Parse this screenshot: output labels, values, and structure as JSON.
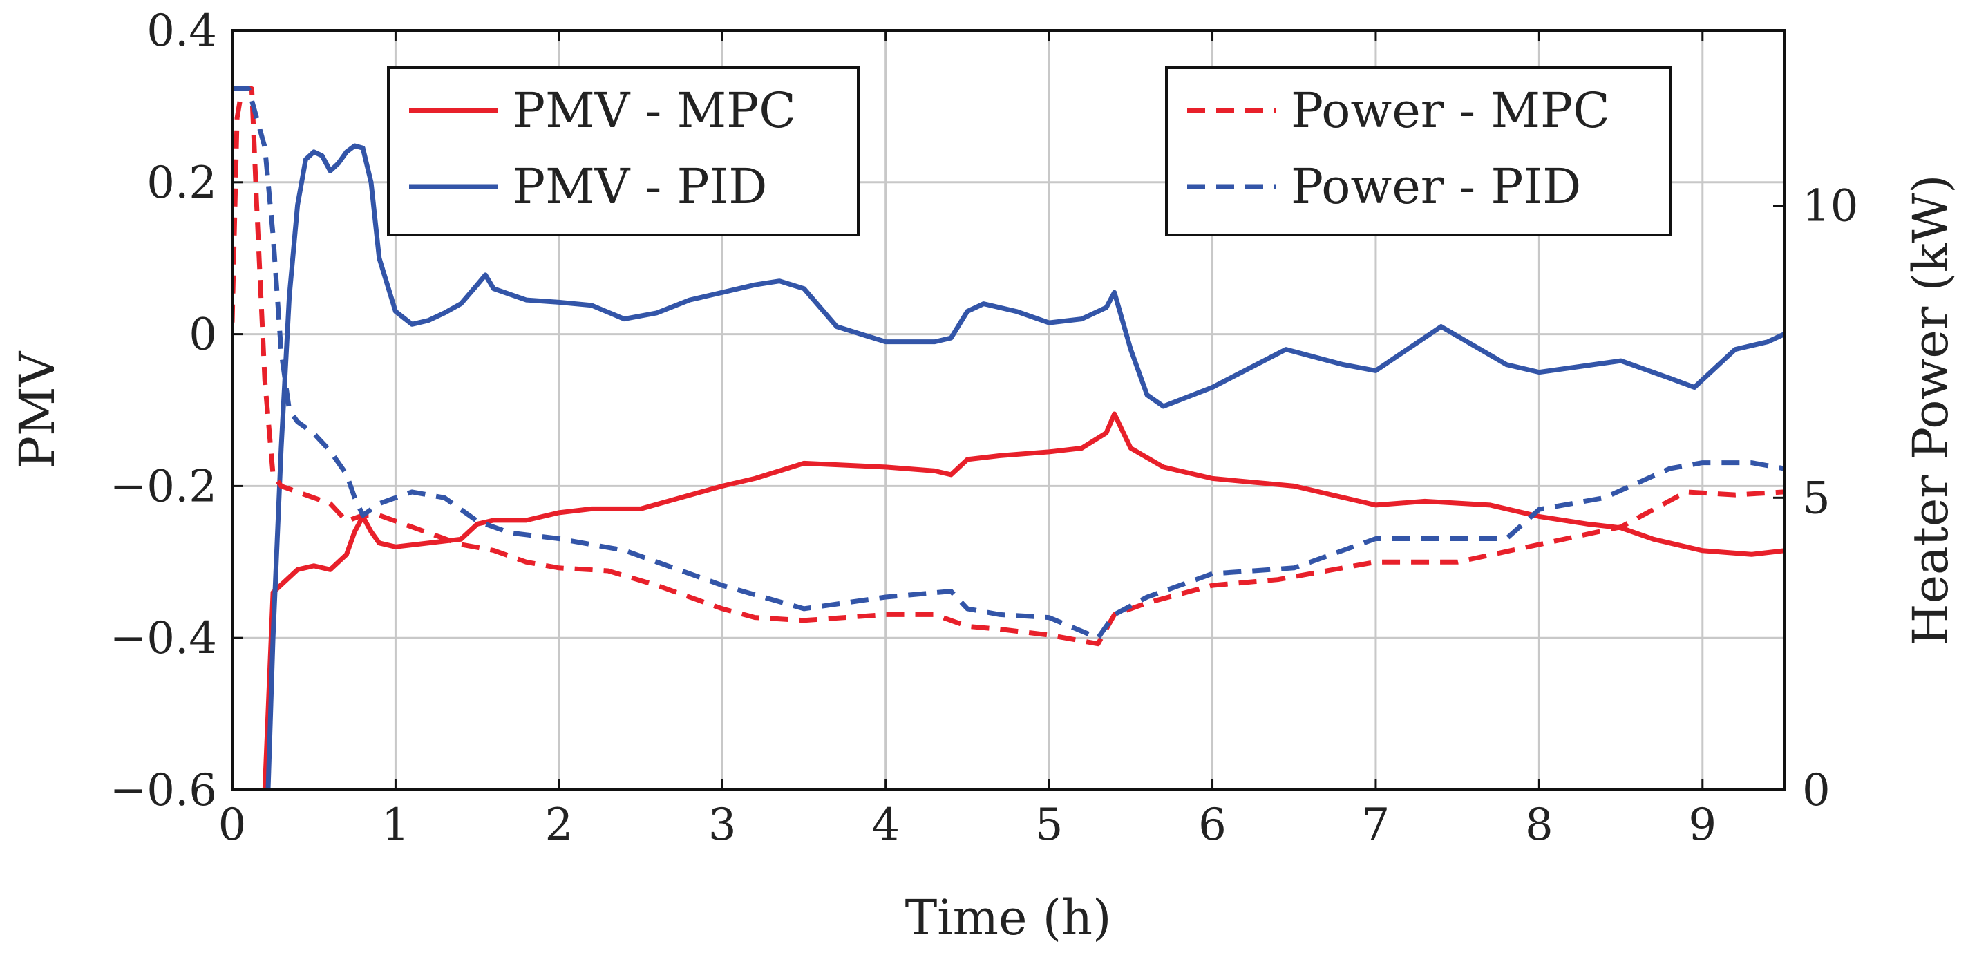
{
  "chart_data": {
    "type": "line",
    "title": "",
    "xlabel": "Time (h)",
    "ylabel": "PMV",
    "y2label": "Heater Power (kW)",
    "xlim": [
      0,
      9.5
    ],
    "ylim": [
      -0.6,
      0.4
    ],
    "y2lim": [
      0,
      13
    ],
    "xticks": [
      0,
      1,
      2,
      3,
      4,
      5,
      6,
      7,
      8,
      9
    ],
    "xtick_labels": [
      "0",
      "1",
      "2",
      "3",
      "4",
      "5",
      "6",
      "7",
      "8",
      "9"
    ],
    "yticks": [
      -0.6,
      -0.4,
      -0.2,
      0,
      0.2,
      0.4
    ],
    "ytick_labels": [
      "−0.6",
      "−0.4",
      "−0.2",
      "0",
      "0.2",
      "0.4"
    ],
    "y2ticks": [
      0,
      5,
      10
    ],
    "y2tick_labels": [
      "0",
      "5",
      "10"
    ],
    "grid": true,
    "legend_left_position": "top-left",
    "legend_right_position": "top-right",
    "series": [
      {
        "name": "PMV - MPC",
        "axis": "left",
        "style": "solid",
        "color": "#e8202a",
        "x": [
          0.2,
          0.25,
          0.3,
          0.4,
          0.5,
          0.6,
          0.7,
          0.75,
          0.8,
          0.85,
          0.9,
          1.0,
          1.2,
          1.4,
          1.5,
          1.6,
          1.8,
          2.0,
          2.2,
          2.5,
          3.0,
          3.2,
          3.5,
          4.0,
          4.3,
          4.4,
          4.5,
          4.7,
          5.0,
          5.2,
          5.35,
          5.4,
          5.5,
          5.7,
          6.0,
          6.5,
          7.0,
          7.3,
          7.7,
          8.0,
          8.3,
          8.5,
          8.7,
          9.0,
          9.3,
          9.5
        ],
        "y": [
          -0.6,
          -0.34,
          -0.33,
          -0.31,
          -0.305,
          -0.31,
          -0.29,
          -0.26,
          -0.24,
          -0.26,
          -0.275,
          -0.28,
          -0.275,
          -0.27,
          -0.25,
          -0.245,
          -0.245,
          -0.235,
          -0.23,
          -0.23,
          -0.2,
          -0.19,
          -0.17,
          -0.175,
          -0.18,
          -0.185,
          -0.165,
          -0.16,
          -0.155,
          -0.15,
          -0.13,
          -0.105,
          -0.15,
          -0.175,
          -0.19,
          -0.2,
          -0.225,
          -0.22,
          -0.225,
          -0.24,
          -0.25,
          -0.255,
          -0.27,
          -0.285,
          -0.29,
          -0.285
        ]
      },
      {
        "name": "PMV - PID",
        "axis": "left",
        "style": "solid",
        "color": "#3355a8",
        "x": [
          0.22,
          0.25,
          0.3,
          0.35,
          0.4,
          0.45,
          0.5,
          0.55,
          0.6,
          0.65,
          0.7,
          0.75,
          0.8,
          0.85,
          0.9,
          1.0,
          1.1,
          1.2,
          1.3,
          1.4,
          1.5,
          1.55,
          1.6,
          1.8,
          2.0,
          2.2,
          2.4,
          2.6,
          2.8,
          3.0,
          3.2,
          3.35,
          3.5,
          3.7,
          4.0,
          4.3,
          4.4,
          4.5,
          4.6,
          4.8,
          5.0,
          5.2,
          5.35,
          5.4,
          5.5,
          5.6,
          5.7,
          6.0,
          6.45,
          6.8,
          7.0,
          7.4,
          7.8,
          8.0,
          8.5,
          8.8,
          8.95,
          9.1,
          9.2,
          9.4,
          9.5
        ],
        "y": [
          -0.6,
          -0.4,
          -0.15,
          0.05,
          0.17,
          0.23,
          0.24,
          0.235,
          0.215,
          0.225,
          0.24,
          0.248,
          0.245,
          0.2,
          0.1,
          0.03,
          0.013,
          0.018,
          0.028,
          0.04,
          0.065,
          0.078,
          0.06,
          0.045,
          0.042,
          0.038,
          0.02,
          0.028,
          0.045,
          0.055,
          0.065,
          0.07,
          0.06,
          0.01,
          -0.01,
          -0.01,
          -0.005,
          0.03,
          0.04,
          0.03,
          0.015,
          0.02,
          0.035,
          0.055,
          -0.02,
          -0.08,
          -0.095,
          -0.07,
          -0.02,
          -0.04,
          -0.048,
          0.01,
          -0.04,
          -0.05,
          -0.035,
          -0.058,
          -0.07,
          -0.04,
          -0.02,
          -0.01,
          0.0
        ]
      },
      {
        "name": "Power - MPC",
        "axis": "right",
        "style": "dashed",
        "color": "#e8202a",
        "x": [
          0.0,
          0.03,
          0.06,
          0.12,
          0.15,
          0.2,
          0.25,
          0.3,
          0.4,
          0.5,
          0.6,
          0.7,
          0.8,
          0.9,
          1.0,
          1.2,
          1.4,
          1.6,
          1.8,
          2.0,
          2.3,
          2.6,
          3.0,
          3.2,
          3.5,
          4.0,
          4.3,
          4.5,
          4.7,
          5.0,
          5.3,
          5.4,
          5.6,
          6.0,
          6.4,
          7.0,
          7.5,
          8.0,
          8.5,
          8.9,
          9.2,
          9.5
        ],
        "y": [
          8.0,
          11.5,
          12.0,
          12.0,
          10.0,
          7.0,
          5.4,
          5.2,
          5.1,
          5.0,
          4.9,
          4.6,
          4.7,
          4.7,
          4.6,
          4.4,
          4.2,
          4.1,
          3.9,
          3.8,
          3.75,
          3.5,
          3.1,
          2.95,
          2.9,
          3.0,
          3.0,
          2.8,
          2.75,
          2.65,
          2.5,
          3.0,
          3.2,
          3.5,
          3.6,
          3.9,
          3.9,
          4.2,
          4.5,
          5.1,
          5.05,
          5.1
        ]
      },
      {
        "name": "Power - PID",
        "axis": "right",
        "style": "dashed",
        "color": "#3355a8",
        "x": [
          0.0,
          0.05,
          0.1,
          0.15,
          0.2,
          0.25,
          0.3,
          0.35,
          0.4,
          0.5,
          0.6,
          0.7,
          0.75,
          0.8,
          0.9,
          1.0,
          1.1,
          1.3,
          1.5,
          1.7,
          2.0,
          2.4,
          3.0,
          3.5,
          4.0,
          4.4,
          4.5,
          4.7,
          5.0,
          5.3,
          5.4,
          5.6,
          6.0,
          6.5,
          7.0,
          7.4,
          7.8,
          8.0,
          8.4,
          8.8,
          9.0,
          9.3,
          9.5
        ],
        "y": [
          12.0,
          12.0,
          12.0,
          11.5,
          11.0,
          9.5,
          7.5,
          6.5,
          6.3,
          6.1,
          5.8,
          5.4,
          5.0,
          4.7,
          4.9,
          5.0,
          5.1,
          5.0,
          4.6,
          4.4,
          4.3,
          4.1,
          3.5,
          3.1,
          3.3,
          3.4,
          3.1,
          3.0,
          2.95,
          2.6,
          3.0,
          3.3,
          3.7,
          3.8,
          4.3,
          4.3,
          4.3,
          4.8,
          5.0,
          5.5,
          5.6,
          5.6,
          5.5
        ]
      }
    ]
  }
}
